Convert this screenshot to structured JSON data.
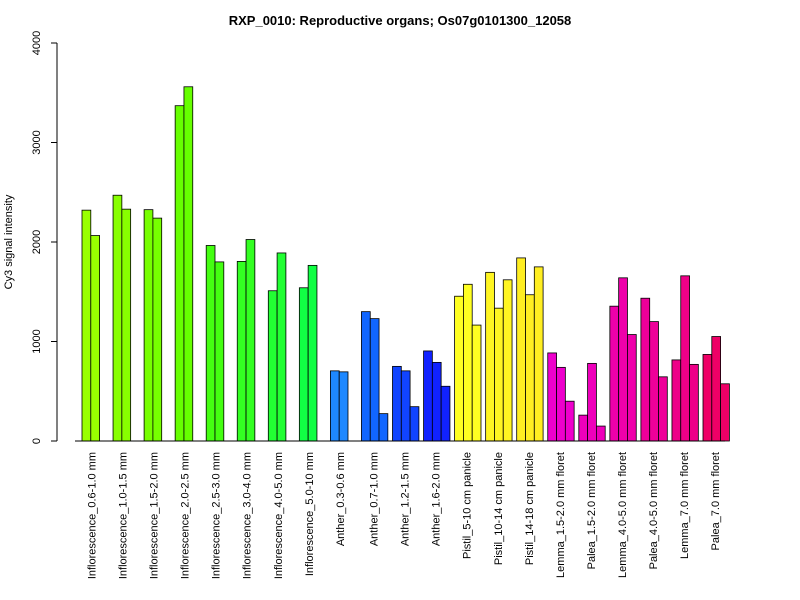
{
  "chart_data": {
    "type": "bar",
    "title": "RXP_0010: Reproductive organs; Os07g0101300_12058",
    "xlabel": "",
    "ylabel": "Cy3 signal intensity",
    "ylim": [
      0,
      4000
    ],
    "yticks": [
      0,
      1000,
      2000,
      3000,
      4000
    ],
    "legend": "none",
    "grid": false,
    "groups": [
      {
        "label": "Inflorescence_0.6-1.0 mm",
        "values": [
          2320,
          2065
        ],
        "color": "#99FF00"
      },
      {
        "label": "Inflorescence_1.0-1.5 mm",
        "values": [
          2470,
          2330
        ],
        "color": "#88FF00"
      },
      {
        "label": "Inflorescence_1.5-2.0 mm",
        "values": [
          2325,
          2240
        ],
        "color": "#77FF00"
      },
      {
        "label": "Inflorescence_2.0-2.5 mm",
        "values": [
          3370,
          3560
        ],
        "color": "#66FF00"
      },
      {
        "label": "Inflorescence_2.5-3.0 mm",
        "values": [
          1965,
          1800
        ],
        "color": "#44FF11"
      },
      {
        "label": "Inflorescence_3.0-4.0 mm",
        "values": [
          1805,
          2025
        ],
        "color": "#33FF22"
      },
      {
        "label": "Inflorescence_4.0-5.0 mm",
        "values": [
          1510,
          1890
        ],
        "color": "#22FF33"
      },
      {
        "label": "Inflorescence_5.0-10 mm",
        "values": [
          1540,
          1765
        ],
        "color": "#11FF44"
      },
      {
        "label": "Anther_0.3-0.6 mm",
        "values": [
          705,
          695
        ],
        "color": "#1E88FF"
      },
      {
        "label": "Anther_0.7-1.0 mm",
        "values": [
          1300,
          1230,
          275
        ],
        "color": "#1166FF"
      },
      {
        "label": "Anther_1.2-1.5 mm",
        "values": [
          750,
          705,
          345
        ],
        "color": "#1144FF"
      },
      {
        "label": "Anther_1.6-2.0 mm",
        "values": [
          905,
          790,
          550
        ],
        "color": "#1122FF"
      },
      {
        "label": "Pistil_5-10 cm panicle",
        "values": [
          1455,
          1575,
          1165
        ],
        "color": "#FFFF22"
      },
      {
        "label": "Pistil_10-14 cm panicle",
        "values": [
          1695,
          1335,
          1620
        ],
        "color": "#FFF522"
      },
      {
        "label": "Pistil_14-18 cm panicle",
        "values": [
          1840,
          1470,
          1750
        ],
        "color": "#FFEE22"
      },
      {
        "label": "Lemma_1.5-2.0 mm floret",
        "values": [
          885,
          740,
          400
        ],
        "color": "#EE00CC"
      },
      {
        "label": "Palea_1.5-2.0 mm floret",
        "values": [
          260,
          780,
          150
        ],
        "color": "#EE00BB"
      },
      {
        "label": "Lemma_4.0-5.0 mm floret",
        "values": [
          1355,
          1640,
          1070
        ],
        "color": "#EE00AA"
      },
      {
        "label": "Palea_4.0-5.0 mm floret",
        "values": [
          1435,
          1200,
          645
        ],
        "color": "#EE0099"
      },
      {
        "label": "Lemma_7.0 mm floret",
        "values": [
          815,
          1660,
          770
        ],
        "color": "#EE0088"
      },
      {
        "label": "Palea_7.0 mm floret",
        "values": [
          870,
          1050,
          575
        ],
        "color": "#EE0066"
      }
    ]
  }
}
